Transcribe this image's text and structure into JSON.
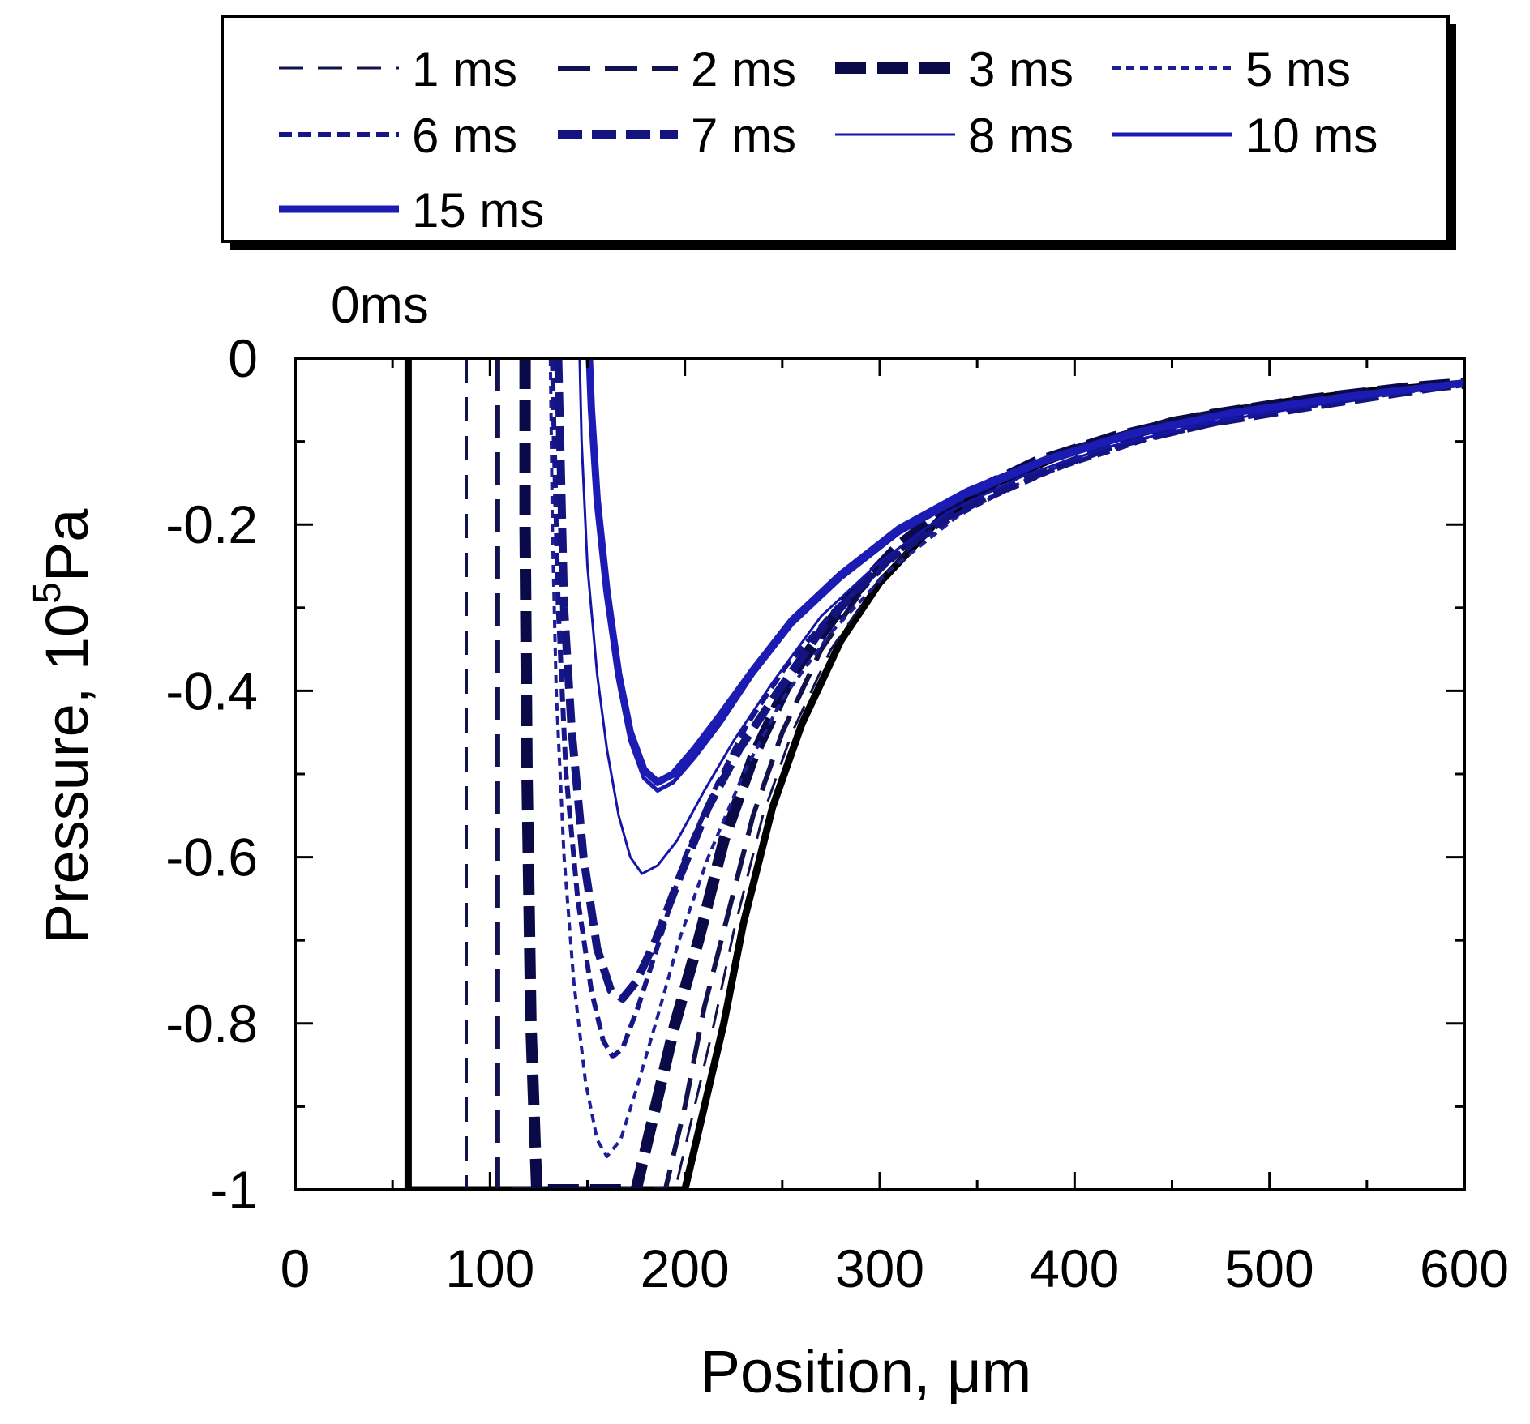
{
  "chart_data": {
    "type": "line",
    "title": "",
    "xlabel": "Position, μm",
    "ylabel_base": "Pressure, 10",
    "ylabel_sup": "5",
    "ylabel_unit": "Pa",
    "xlim": [
      0,
      600
    ],
    "ylim": [
      -1,
      0
    ],
    "x_ticks": [
      0,
      100,
      200,
      300,
      400,
      500,
      600
    ],
    "x_tick_labels": [
      "0",
      "100",
      "200",
      "300",
      "400",
      "500",
      "600"
    ],
    "y_ticks": [
      0,
      -0.2,
      -0.4,
      -0.6,
      -0.8,
      -1
    ],
    "y_tick_labels": [
      "0",
      "-0.2",
      "-0.4",
      "-0.6",
      "-0.8",
      "-1"
    ],
    "grid": false,
    "legend_position": "top",
    "annotation": "0ms",
    "series": [
      {
        "name": "0ms",
        "in_legend": false,
        "color": "#000000",
        "width": 9,
        "dash": "",
        "points": [
          [
            58,
            0
          ],
          [
            58,
            -1
          ],
          [
            200,
            -1
          ],
          [
            210,
            -0.9
          ],
          [
            220,
            -0.8
          ],
          [
            230,
            -0.68
          ],
          [
            245,
            -0.54
          ],
          [
            260,
            -0.44
          ],
          [
            280,
            -0.34
          ],
          [
            300,
            -0.27
          ],
          [
            330,
            -0.195
          ],
          [
            360,
            -0.15
          ],
          [
            400,
            -0.11
          ],
          [
            450,
            -0.075
          ],
          [
            500,
            -0.055
          ],
          [
            550,
            -0.04
          ],
          [
            600,
            -0.03
          ]
        ]
      },
      {
        "name": "1 ms",
        "in_legend": true,
        "color": "#12124e",
        "width": 3,
        "dash": "30,18",
        "points": [
          [
            88,
            0
          ],
          [
            88,
            -1
          ],
          [
            195,
            -1
          ],
          [
            205,
            -0.9
          ],
          [
            215,
            -0.8
          ],
          [
            225,
            -0.69
          ],
          [
            240,
            -0.55
          ],
          [
            255,
            -0.45
          ],
          [
            275,
            -0.35
          ],
          [
            300,
            -0.265
          ],
          [
            330,
            -0.195
          ],
          [
            360,
            -0.15
          ],
          [
            400,
            -0.108
          ],
          [
            450,
            -0.075
          ],
          [
            500,
            -0.055
          ],
          [
            550,
            -0.04
          ],
          [
            600,
            -0.03
          ]
        ]
      },
      {
        "name": "2 ms",
        "in_legend": true,
        "color": "#12124e",
        "width": 6,
        "dash": "40,18",
        "points": [
          [
            104,
            0
          ],
          [
            104,
            -1
          ],
          [
            190,
            -1
          ],
          [
            200,
            -0.9
          ],
          [
            210,
            -0.78
          ],
          [
            222,
            -0.67
          ],
          [
            235,
            -0.55
          ],
          [
            250,
            -0.45
          ],
          [
            270,
            -0.35
          ],
          [
            295,
            -0.265
          ],
          [
            330,
            -0.19
          ],
          [
            360,
            -0.148
          ],
          [
            400,
            -0.107
          ],
          [
            450,
            -0.074
          ],
          [
            500,
            -0.054
          ],
          [
            550,
            -0.04
          ],
          [
            600,
            -0.03
          ]
        ]
      },
      {
        "name": "3 ms",
        "in_legend": true,
        "color": "#0a0a48",
        "width": 14,
        "dash": "38,14",
        "points": [
          [
            118,
            0
          ],
          [
            118,
            -0.2
          ],
          [
            119,
            -0.5
          ],
          [
            121,
            -0.8
          ],
          [
            124,
            -1
          ],
          [
            175,
            -1
          ],
          [
            185,
            -0.9
          ],
          [
            195,
            -0.8
          ],
          [
            207,
            -0.7
          ],
          [
            220,
            -0.58
          ],
          [
            235,
            -0.48
          ],
          [
            255,
            -0.38
          ],
          [
            280,
            -0.3
          ],
          [
            310,
            -0.225
          ],
          [
            340,
            -0.17
          ],
          [
            380,
            -0.125
          ],
          [
            420,
            -0.095
          ],
          [
            470,
            -0.068
          ],
          [
            520,
            -0.05
          ],
          [
            570,
            -0.036
          ],
          [
            600,
            -0.03
          ]
        ]
      },
      {
        "name": "5 ms",
        "in_legend": true,
        "color": "#1e1e99",
        "width": 4,
        "dash": "10,7",
        "points": [
          [
            131,
            0
          ],
          [
            132,
            -0.2
          ],
          [
            134,
            -0.4
          ],
          [
            138,
            -0.6
          ],
          [
            143,
            -0.75
          ],
          [
            149,
            -0.87
          ],
          [
            155,
            -0.94
          ],
          [
            160,
            -0.96
          ],
          [
            167,
            -0.94
          ],
          [
            175,
            -0.88
          ],
          [
            185,
            -0.8
          ],
          [
            197,
            -0.7
          ],
          [
            212,
            -0.6
          ],
          [
            230,
            -0.5
          ],
          [
            250,
            -0.41
          ],
          [
            275,
            -0.33
          ],
          [
            305,
            -0.255
          ],
          [
            340,
            -0.19
          ],
          [
            380,
            -0.14
          ],
          [
            430,
            -0.1
          ],
          [
            480,
            -0.07
          ],
          [
            530,
            -0.05
          ],
          [
            600,
            -0.03
          ]
        ]
      },
      {
        "name": "6 ms",
        "in_legend": true,
        "color": "#161688",
        "width": 6,
        "dash": "16,8",
        "points": [
          [
            132,
            0
          ],
          [
            133,
            -0.1
          ],
          [
            135,
            -0.3
          ],
          [
            139,
            -0.5
          ],
          [
            145,
            -0.65
          ],
          [
            152,
            -0.76
          ],
          [
            158,
            -0.82
          ],
          [
            163,
            -0.84
          ],
          [
            168,
            -0.83
          ],
          [
            176,
            -0.78
          ],
          [
            187,
            -0.7
          ],
          [
            200,
            -0.6
          ],
          [
            215,
            -0.52
          ],
          [
            232,
            -0.44
          ],
          [
            252,
            -0.37
          ],
          [
            278,
            -0.3
          ],
          [
            310,
            -0.235
          ],
          [
            345,
            -0.18
          ],
          [
            390,
            -0.133
          ],
          [
            440,
            -0.095
          ],
          [
            500,
            -0.065
          ],
          [
            550,
            -0.047
          ],
          [
            600,
            -0.03
          ]
        ]
      },
      {
        "name": "7 ms",
        "in_legend": true,
        "color": "#141480",
        "width": 10,
        "dash": "30,12",
        "points": [
          [
            135,
            0
          ],
          [
            136,
            -0.1
          ],
          [
            138,
            -0.3
          ],
          [
            142,
            -0.45
          ],
          [
            148,
            -0.6
          ],
          [
            155,
            -0.71
          ],
          [
            162,
            -0.76
          ],
          [
            168,
            -0.77
          ],
          [
            175,
            -0.75
          ],
          [
            185,
            -0.7
          ],
          [
            198,
            -0.62
          ],
          [
            212,
            -0.54
          ],
          [
            228,
            -0.47
          ],
          [
            248,
            -0.4
          ],
          [
            272,
            -0.32
          ],
          [
            300,
            -0.25
          ],
          [
            335,
            -0.19
          ],
          [
            375,
            -0.145
          ],
          [
            420,
            -0.105
          ],
          [
            470,
            -0.078
          ],
          [
            530,
            -0.055
          ],
          [
            600,
            -0.03
          ]
        ]
      },
      {
        "name": "8 ms",
        "in_legend": true,
        "color": "#1515a8",
        "width": 3,
        "dash": "",
        "points": [
          [
            146,
            0
          ],
          [
            147,
            -0.1
          ],
          [
            150,
            -0.25
          ],
          [
            155,
            -0.38
          ],
          [
            160,
            -0.47
          ],
          [
            166,
            -0.55
          ],
          [
            172,
            -0.6
          ],
          [
            178,
            -0.62
          ],
          [
            186,
            -0.61
          ],
          [
            196,
            -0.58
          ],
          [
            210,
            -0.52
          ],
          [
            225,
            -0.46
          ],
          [
            245,
            -0.39
          ],
          [
            270,
            -0.31
          ],
          [
            300,
            -0.245
          ],
          [
            335,
            -0.185
          ],
          [
            375,
            -0.14
          ],
          [
            420,
            -0.105
          ],
          [
            470,
            -0.077
          ],
          [
            530,
            -0.054
          ],
          [
            600,
            -0.03
          ]
        ]
      },
      {
        "name": "10 ms",
        "in_legend": true,
        "color": "#1a1ab0",
        "width": 5,
        "dash": "",
        "points": [
          [
            151,
            0
          ],
          [
            152,
            -0.06
          ],
          [
            155,
            -0.17
          ],
          [
            160,
            -0.28
          ],
          [
            166,
            -0.39
          ],
          [
            172,
            -0.46
          ],
          [
            179,
            -0.505
          ],
          [
            186,
            -0.52
          ],
          [
            194,
            -0.51
          ],
          [
            205,
            -0.48
          ],
          [
            218,
            -0.44
          ],
          [
            235,
            -0.38
          ],
          [
            255,
            -0.32
          ],
          [
            280,
            -0.265
          ],
          [
            310,
            -0.21
          ],
          [
            345,
            -0.165
          ],
          [
            385,
            -0.125
          ],
          [
            430,
            -0.093
          ],
          [
            480,
            -0.068
          ],
          [
            540,
            -0.047
          ],
          [
            600,
            -0.03
          ]
        ]
      },
      {
        "name": "15 ms",
        "in_legend": true,
        "color": "#1c1cb4",
        "width": 9,
        "dash": "",
        "points": [
          [
            151,
            0
          ],
          [
            152,
            -0.06
          ],
          [
            155,
            -0.17
          ],
          [
            160,
            -0.28
          ],
          [
            166,
            -0.38
          ],
          [
            172,
            -0.45
          ],
          [
            179,
            -0.495
          ],
          [
            186,
            -0.51
          ],
          [
            194,
            -0.5
          ],
          [
            205,
            -0.47
          ],
          [
            218,
            -0.43
          ],
          [
            235,
            -0.375
          ],
          [
            255,
            -0.315
          ],
          [
            280,
            -0.26
          ],
          [
            310,
            -0.205
          ],
          [
            345,
            -0.16
          ],
          [
            385,
            -0.122
          ],
          [
            430,
            -0.09
          ],
          [
            480,
            -0.066
          ],
          [
            540,
            -0.046
          ],
          [
            600,
            -0.03
          ]
        ]
      }
    ]
  }
}
